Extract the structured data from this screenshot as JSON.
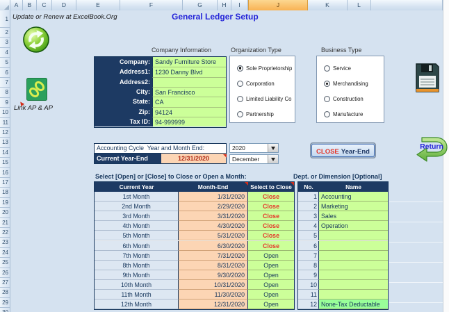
{
  "colors": {
    "sheet_bg": "#d5e2f0",
    "navy": "#1d3a63",
    "green": "#ccff99",
    "green_bright": "#99ff99",
    "peach": "#fcd5b4",
    "lightblue_cell": "#dde7f2",
    "red_close": "#e5372b",
    "dark_red": "#b02c18",
    "title_blue": "#2323d8"
  },
  "page": {
    "note": "Update or Renew at ExcelBook.Org",
    "title": "General Ledger Setup"
  },
  "spreadsheet": {
    "columns": [
      "A",
      "B",
      "C",
      "D",
      "E",
      "F",
      "G",
      "H",
      "I",
      "J",
      "K",
      "L"
    ],
    "selected_column": "J",
    "row_count": 30
  },
  "company": {
    "section_label": "Company Information",
    "fields": [
      {
        "label": "Company:",
        "value": "Sandy Furniture Store"
      },
      {
        "label": "Address1:",
        "value": "1230 Danny Blvd"
      },
      {
        "label": "Address2:",
        "value": ""
      },
      {
        "label": "City:",
        "value": "San Francisco"
      },
      {
        "label": "State:",
        "value": "CA"
      },
      {
        "label": "Zip:",
        "value": "94124"
      },
      {
        "label": "Tax ID:",
        "value": "94-999999"
      }
    ]
  },
  "organization_type": {
    "label": "Organization Type",
    "options": [
      {
        "label": "Sole Proprietorship",
        "selected": true
      },
      {
        "label": "Corporation",
        "selected": false
      },
      {
        "label": "Limited Liability Co",
        "selected": false
      },
      {
        "label": "Partnership",
        "selected": false
      }
    ]
  },
  "business_type": {
    "label": "Business Type",
    "options": [
      {
        "label": "Service",
        "selected": false
      },
      {
        "label": "Merchandising",
        "selected": true
      },
      {
        "label": "Construction",
        "selected": false
      },
      {
        "label": "Manufacture",
        "selected": false
      }
    ]
  },
  "accounting_cycle": {
    "label": "Accounting Cycle  Year and Month End:",
    "year": "2020",
    "month": "December",
    "current_year_end_label": "Current Year-End",
    "current_year_end_value": "12/31/2020",
    "close_button_primary": "CLOSE",
    "close_button_secondary": "Year-End"
  },
  "side_labels": {
    "link_ap": "Link AP & AP",
    "return": "Return"
  },
  "month_table": {
    "instruction": "Select [Open] or [Close] to Close or Open a Month:",
    "headers": [
      "Current Year",
      "Month-End",
      "Select to Close"
    ],
    "rows": [
      {
        "period": "1st Month",
        "month_end": "1/31/2020",
        "status": "Close"
      },
      {
        "period": "2nd Month",
        "month_end": "2/29/2020",
        "status": "Close"
      },
      {
        "period": "3rd Month",
        "month_end": "3/31/2020",
        "status": "Close"
      },
      {
        "period": "4th Month",
        "month_end": "4/30/2020",
        "status": "Close"
      },
      {
        "period": "5th Month",
        "month_end": "5/31/2020",
        "status": "Close"
      },
      {
        "period": "6th Month",
        "month_end": "6/30/2020",
        "status": "Close"
      },
      {
        "period": "7th Month",
        "month_end": "7/31/2020",
        "status": "Open"
      },
      {
        "period": "8th Month",
        "month_end": "8/31/2020",
        "status": "Open"
      },
      {
        "period": "9th Month",
        "month_end": "9/30/2020",
        "status": "Open"
      },
      {
        "period": "10th Month",
        "month_end": "10/31/2020",
        "status": "Open"
      },
      {
        "period": "11th Month",
        "month_end": "11/30/2020",
        "status": "Open"
      },
      {
        "period": "12th Month",
        "month_end": "12/31/2020",
        "status": "Open"
      }
    ]
  },
  "dept_table": {
    "label": "Dept. or Dimension [Optional]",
    "headers": [
      "No.",
      "Name"
    ],
    "rows": [
      {
        "no": "1",
        "name": "Accounting"
      },
      {
        "no": "2",
        "name": "Marketing"
      },
      {
        "no": "3",
        "name": "Sales"
      },
      {
        "no": "4",
        "name": "Operation"
      },
      {
        "no": "5",
        "name": ""
      },
      {
        "no": "6",
        "name": ""
      },
      {
        "no": "7",
        "name": ""
      },
      {
        "no": "8",
        "name": ""
      },
      {
        "no": "9",
        "name": ""
      },
      {
        "no": "10",
        "name": ""
      },
      {
        "no": "11",
        "name": ""
      },
      {
        "no": "12",
        "name": "None-Tax Deductable"
      }
    ]
  },
  "icons": {
    "refresh": "refresh-icon",
    "link": "chain-link-icon",
    "save": "floppy-disk-icon",
    "return_arrow": "return-arrow-icon",
    "dropdown": "chevron-down-icon",
    "comment": "comment-marker"
  }
}
